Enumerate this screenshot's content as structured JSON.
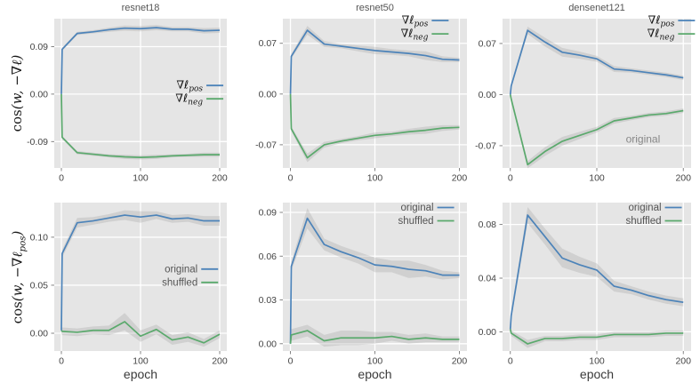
{
  "figure": {
    "background": "#ffffff",
    "panel_background": "#e5e5e5",
    "grid_color": "#ffffff",
    "tick_label_color": "#444444",
    "tick_mark_color": "#777777",
    "title_color": "#555555",
    "annotation_color": "#888888",
    "legend_math_color": "#1a1a1a",
    "legend_plain_color": "#555555",
    "band_color": "#9a9a9a",
    "series_palette": {
      "blue": "#4c83b9",
      "green": "#5aa96c"
    }
  },
  "chart_data": [
    {
      "type": "line",
      "title": "resnet18",
      "ylabel": "cos(w, −∇ℓ)",
      "xlabel": null,
      "x": [
        0,
        1,
        20,
        40,
        60,
        80,
        100,
        120,
        140,
        160,
        180,
        200
      ],
      "xlim": [
        -9,
        209
      ],
      "ylim": [
        -0.14,
        0.143
      ],
      "xticks": {
        "values": [
          0,
          100,
          200
        ],
        "labels": [
          "0",
          "100",
          "200"
        ]
      },
      "yticks": {
        "values": [
          0.09,
          0.0,
          -0.09
        ],
        "labels": [
          "0.09",
          "0.00",
          "-0.09"
        ]
      },
      "grid": true,
      "legend": {
        "style": "math",
        "right": 0.99,
        "top": 0.4
      },
      "series": [
        {
          "name": "∇ℓ_pos",
          "color": "blue",
          "y": [
            0.0,
            0.085,
            0.115,
            0.118,
            0.122,
            0.125,
            0.124,
            0.126,
            0.123,
            0.123,
            0.12,
            0.121
          ],
          "band": [
            0.002,
            0.003,
            0.003,
            0.003,
            0.004,
            0.005,
            0.005,
            0.005,
            0.004,
            0.004,
            0.005,
            0.005
          ]
        },
        {
          "name": "∇ℓ_neg",
          "color": "green",
          "y": [
            0.0,
            -0.082,
            -0.111,
            -0.114,
            -0.117,
            -0.119,
            -0.12,
            -0.119,
            -0.117,
            -0.116,
            -0.115,
            -0.115
          ],
          "band": [
            0.002,
            0.003,
            0.003,
            0.003,
            0.003,
            0.004,
            0.004,
            0.004,
            0.003,
            0.003,
            0.004,
            0.004
          ]
        }
      ]
    },
    {
      "type": "line",
      "title": "resnet50",
      "ylabel": null,
      "xlabel": null,
      "x": [
        0,
        1,
        20,
        40,
        60,
        80,
        100,
        120,
        140,
        160,
        180,
        200
      ],
      "xlim": [
        -9,
        209
      ],
      "ylim": [
        -0.102,
        0.104
      ],
      "xticks": {
        "values": [
          0,
          100,
          200
        ],
        "labels": [
          "0",
          "100",
          "200"
        ]
      },
      "yticks": {
        "values": [
          0.07,
          0.0,
          -0.07
        ],
        "labels": [
          "0.07",
          "0.00",
          "-0.07"
        ]
      },
      "grid": true,
      "legend": {
        "style": "math",
        "right": 0.91,
        "top": -0.035
      },
      "series": [
        {
          "name": "∇ℓ_pos",
          "color": "blue",
          "y": [
            0.0,
            0.052,
            0.088,
            0.069,
            0.066,
            0.063,
            0.06,
            0.058,
            0.056,
            0.053,
            0.048,
            0.047
          ],
          "band": [
            0.001,
            0.003,
            0.006,
            0.004,
            0.003,
            0.004,
            0.005,
            0.004,
            0.004,
            0.006,
            0.004,
            0.003
          ]
        },
        {
          "name": "∇ℓ_neg",
          "color": "green",
          "y": [
            0.0,
            -0.048,
            -0.088,
            -0.07,
            -0.065,
            -0.061,
            -0.057,
            -0.055,
            -0.052,
            -0.05,
            -0.047,
            -0.046
          ],
          "band": [
            0.001,
            0.003,
            0.006,
            0.004,
            0.003,
            0.003,
            0.004,
            0.003,
            0.004,
            0.005,
            0.004,
            0.003
          ]
        }
      ]
    },
    {
      "type": "line",
      "title": "densenet121",
      "ylabel": null,
      "xlabel": null,
      "x": [
        0,
        1,
        20,
        40,
        60,
        80,
        100,
        120,
        140,
        160,
        180,
        200
      ],
      "xlim": [
        -9,
        209
      ],
      "ylim": [
        -0.1005,
        0.104
      ],
      "xticks": {
        "values": [
          0,
          100,
          200
        ],
        "labels": [
          "0",
          "100",
          "200"
        ]
      },
      "yticks": {
        "values": [
          0.07,
          0.0,
          -0.07
        ],
        "labels": [
          "0.07",
          "0.00",
          "-0.07"
        ]
      },
      "grid": true,
      "legend": {
        "style": "math",
        "right": 1.03,
        "top": -0.035
      },
      "annotation": {
        "text": "original",
        "x": 0.745,
        "y": 0.83
      },
      "series": [
        {
          "name": "∇ℓ_pos",
          "color": "blue",
          "y": [
            0.0,
            0.012,
            0.088,
            0.072,
            0.058,
            0.054,
            0.049,
            0.035,
            0.033,
            0.03,
            0.027,
            0.023
          ],
          "band": [
            0.001,
            0.002,
            0.005,
            0.006,
            0.006,
            0.005,
            0.004,
            0.004,
            0.003,
            0.003,
            0.003,
            0.003
          ]
        },
        {
          "name": "∇ℓ_neg",
          "color": "green",
          "y": [
            0.0,
            -0.006,
            -0.096,
            -0.078,
            -0.064,
            -0.056,
            -0.048,
            -0.036,
            -0.032,
            -0.028,
            -0.026,
            -0.022
          ],
          "band": [
            0.001,
            0.002,
            0.005,
            0.006,
            0.006,
            0.005,
            0.004,
            0.004,
            0.003,
            0.003,
            0.003,
            0.003
          ]
        }
      ]
    },
    {
      "type": "line",
      "title": null,
      "ylabel": "cos(w, −∇ℓ_pos)",
      "xlabel": "epoch",
      "x": [
        0,
        1,
        20,
        40,
        60,
        80,
        100,
        120,
        140,
        160,
        180,
        200
      ],
      "xlim": [
        -9,
        209
      ],
      "ylim": [
        -0.0185,
        0.136
      ],
      "xticks": {
        "values": [
          0,
          100,
          200
        ],
        "labels": [
          "0",
          "100",
          "200"
        ]
      },
      "yticks": {
        "values": [
          0.1,
          0.05,
          0.0
        ],
        "labels": [
          "0.10",
          "0.05",
          "0.00"
        ]
      },
      "grid": true,
      "legend": {
        "style": "plain",
        "right": 0.96,
        "top": 0.4
      },
      "series": [
        {
          "name": "original",
          "color": "blue",
          "y": [
            0.003,
            0.083,
            0.115,
            0.117,
            0.12,
            0.123,
            0.121,
            0.123,
            0.119,
            0.12,
            0.117,
            0.117
          ],
          "band": [
            0.002,
            0.004,
            0.005,
            0.004,
            0.004,
            0.005,
            0.006,
            0.004,
            0.004,
            0.004,
            0.005,
            0.005
          ]
        },
        {
          "name": "shuffled",
          "color": "green",
          "y": [
            0.003,
            0.002,
            0.001,
            0.003,
            0.003,
            0.012,
            -0.003,
            0.004,
            -0.007,
            -0.004,
            -0.01,
            -0.001
          ],
          "band": [
            0.003,
            0.004,
            0.004,
            0.004,
            0.005,
            0.009,
            0.006,
            0.005,
            0.005,
            0.005,
            0.004,
            0.004
          ]
        }
      ]
    },
    {
      "type": "line",
      "title": null,
      "ylabel": null,
      "xlabel": "epoch",
      "x": [
        0,
        1,
        20,
        40,
        60,
        80,
        100,
        120,
        140,
        160,
        180,
        200
      ],
      "xlim": [
        -9,
        209
      ],
      "ylim": [
        -0.005,
        0.0967
      ],
      "xticks": {
        "values": [
          0,
          100,
          200
        ],
        "labels": [
          "0",
          "100",
          "200"
        ]
      },
      "yticks": {
        "values": [
          0.09,
          0.06,
          0.03,
          0.0
        ],
        "labels": [
          "0.09",
          "0.06",
          "0.03",
          "0.00"
        ]
      },
      "grid": true,
      "legend": {
        "style": "plain",
        "right": 0.94,
        "top": -0.015
      },
      "series": [
        {
          "name": "original",
          "color": "blue",
          "y": [
            0.0,
            0.053,
            0.086,
            0.068,
            0.063,
            0.059,
            0.054,
            0.053,
            0.051,
            0.05,
            0.047,
            0.047
          ],
          "band": [
            0.001,
            0.003,
            0.007,
            0.004,
            0.004,
            0.004,
            0.005,
            0.004,
            0.006,
            0.004,
            0.003,
            0.002
          ]
        },
        {
          "name": "shuffled",
          "color": "green",
          "y": [
            0.0,
            0.006,
            0.009,
            0.002,
            0.004,
            0.004,
            0.004,
            0.005,
            0.003,
            0.004,
            0.003,
            0.003
          ],
          "band": [
            0.002,
            0.004,
            0.004,
            0.004,
            0.005,
            0.005,
            0.004,
            0.003,
            0.003,
            0.003,
            0.002,
            0.002
          ]
        }
      ]
    },
    {
      "type": "line",
      "title": null,
      "ylabel": null,
      "xlabel": "epoch",
      "x": [
        0,
        1,
        20,
        40,
        60,
        80,
        100,
        120,
        140,
        160,
        180,
        200
      ],
      "xlim": [
        -9,
        209
      ],
      "ylim": [
        -0.0143,
        0.0963
      ],
      "xticks": {
        "values": [
          0,
          100,
          200
        ],
        "labels": [
          "0",
          "100",
          "200"
        ]
      },
      "yticks": {
        "values": [
          0.08,
          0.04,
          0.0
        ],
        "labels": [
          "0.08",
          "0.04",
          "0.00"
        ]
      },
      "grid": true,
      "legend": {
        "style": "plain",
        "right": 0.96,
        "top": -0.015
      },
      "series": [
        {
          "name": "original",
          "color": "blue",
          "y": [
            0.002,
            0.012,
            0.087,
            0.071,
            0.055,
            0.05,
            0.046,
            0.034,
            0.031,
            0.027,
            0.024,
            0.022
          ],
          "band": [
            0.002,
            0.003,
            0.006,
            0.006,
            0.007,
            0.006,
            0.005,
            0.004,
            0.003,
            0.003,
            0.003,
            0.003
          ]
        },
        {
          "name": "shuffled",
          "color": "green",
          "y": [
            0.002,
            -0.001,
            -0.009,
            -0.005,
            -0.005,
            -0.004,
            -0.004,
            -0.002,
            -0.002,
            -0.002,
            -0.001,
            -0.001
          ],
          "band": [
            0.002,
            0.002,
            0.003,
            0.002,
            0.002,
            0.002,
            0.002,
            0.002,
            0.002,
            0.002,
            0.002,
            0.002
          ]
        }
      ]
    }
  ]
}
